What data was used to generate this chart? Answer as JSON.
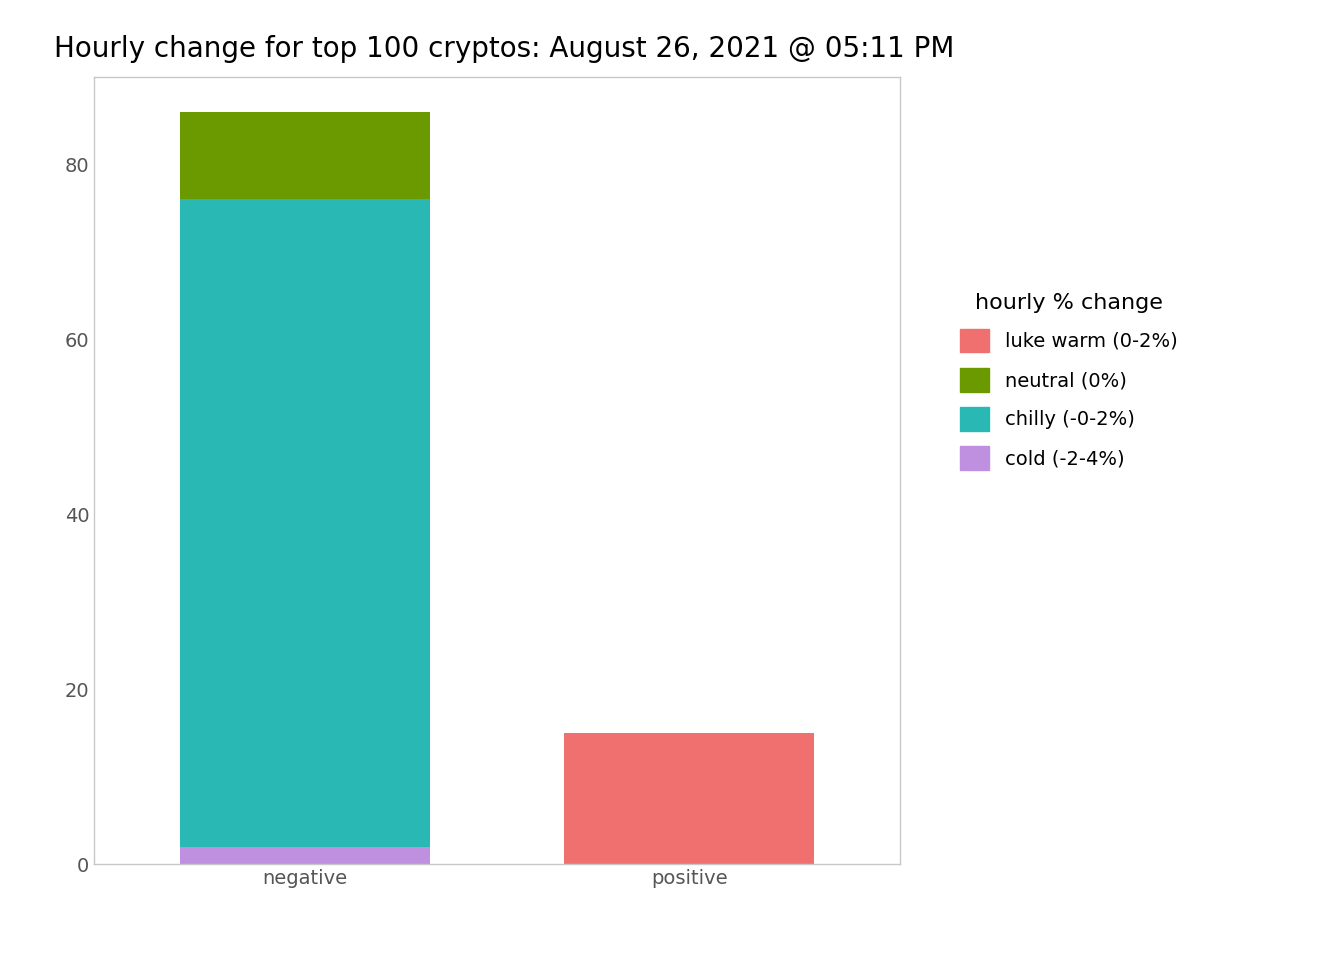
{
  "title": "Hourly change for top 100 cryptos: August 26, 2021 @ 05:11 PM",
  "categories": [
    "negative",
    "positive"
  ],
  "segments": {
    "luke warm (0-2%)": {
      "color": "#F07070",
      "values": [
        0,
        15
      ]
    },
    "neutral (0%)": {
      "color": "#6B9A00",
      "values": [
        10,
        0
      ]
    },
    "chilly (-0-2%)": {
      "color": "#2AB8B4",
      "values": [
        74,
        0
      ]
    },
    "cold (-2-4%)": {
      "color": "#BF8FE0",
      "values": [
        2,
        0
      ]
    }
  },
  "legend_title": "hourly % change",
  "legend_order": [
    "luke warm (0-2%)",
    "neutral (0%)",
    "chilly (-0-2%)",
    "cold (-2-4%)"
  ],
  "ylim": [
    0,
    90
  ],
  "yticks": [
    0,
    20,
    40,
    60,
    80
  ],
  "background_color": "#FFFFFF",
  "plot_bg_color": "#FFFFFF",
  "bar_width": 0.65,
  "title_fontsize": 20,
  "axis_fontsize": 14,
  "legend_fontsize": 14,
  "legend_title_fontsize": 16
}
